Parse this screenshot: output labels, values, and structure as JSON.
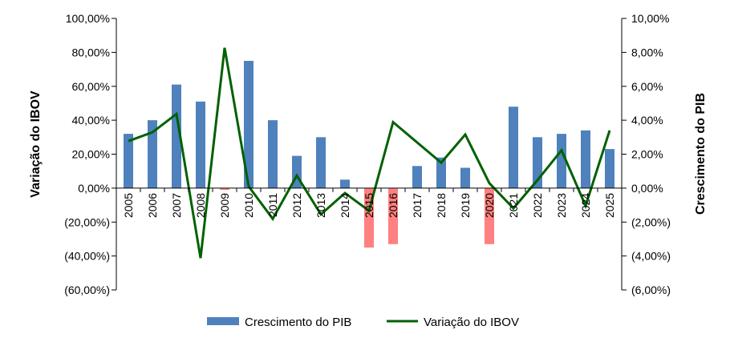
{
  "chart_data": {
    "type": "bar",
    "categories": [
      "2005",
      "2006",
      "2007",
      "2008",
      "2009",
      "2010",
      "2011",
      "2012",
      "2013",
      "2014",
      "2015",
      "2016",
      "2017",
      "2018",
      "2019",
      "2020",
      "2021",
      "2022",
      "2023",
      "2024",
      "2025"
    ],
    "series": [
      {
        "name": "Crescimento do PIB",
        "type": "bar",
        "axis": "right",
        "values": [
          3.2,
          4.0,
          6.1,
          5.1,
          -0.1,
          7.5,
          4.0,
          1.9,
          3.0,
          0.5,
          -3.5,
          -3.3,
          1.3,
          1.8,
          1.2,
          -3.3,
          4.8,
          3.0,
          3.2,
          3.4,
          2.3
        ],
        "color": "#4F81BD",
        "negative_color": "#FF8080"
      },
      {
        "name": "Variação do IBOV",
        "type": "line",
        "axis": "left",
        "values": [
          27.7,
          32.9,
          43.7,
          -41.2,
          82.7,
          1.0,
          -18.1,
          7.4,
          -15.5,
          -2.9,
          -13.3,
          38.9,
          26.9,
          15.0,
          31.6,
          2.9,
          -11.9,
          4.7,
          22.3,
          -10.4,
          34.0
        ],
        "color": "#006100"
      }
    ],
    "ylabel_left": "Variação do IBOV",
    "ylabel_right": "Crescimento do PIB",
    "ylim_left": [
      -60,
      100
    ],
    "ylim_right": [
      -6,
      10
    ],
    "yticks_left": [
      "100,00%",
      "80,00%",
      "60,00%",
      "40,00%",
      "20,00%",
      "0,00%",
      "(20,00%)",
      "(40,00%)",
      "(60,00%)"
    ],
    "yticks_right": [
      "10,00%",
      "8,00%",
      "6,00%",
      "4,00%",
      "2,00%",
      "0,00%",
      "(2,00%)",
      "(4,00%)",
      "(6,00%)"
    ],
    "legend_position": "bottom",
    "grid": false
  }
}
